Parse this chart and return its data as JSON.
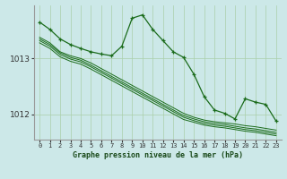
{
  "bg_color": "#cce8e8",
  "grid_color": "#aacfaa",
  "line_color": "#1a6b1a",
  "title": "Graphe pression niveau de la mer (hPa)",
  "xlim": [
    -0.5,
    23.5
  ],
  "ylim": [
    1011.55,
    1013.95
  ],
  "yticks": [
    1012,
    1013
  ],
  "xticks": [
    0,
    1,
    2,
    3,
    4,
    5,
    6,
    7,
    8,
    9,
    10,
    11,
    12,
    13,
    14,
    15,
    16,
    17,
    18,
    19,
    20,
    21,
    22,
    23
  ],
  "series": [
    [
      1013.65,
      1013.52,
      1013.35,
      1013.25,
      1013.18,
      1013.12,
      1013.08,
      1013.05,
      1013.22,
      1013.72,
      1013.78,
      1013.52,
      1013.32,
      1013.12,
      1013.02,
      1012.72,
      1012.32,
      1012.08,
      1012.02,
      1011.92,
      1012.28,
      1012.22,
      1012.18,
      1011.88
    ],
    [
      1013.38,
      1013.28,
      1013.12,
      1013.05,
      1013.0,
      1012.92,
      1012.82,
      1012.72,
      1012.62,
      1012.52,
      1012.42,
      1012.32,
      1012.22,
      1012.12,
      1012.02,
      1011.95,
      1011.9,
      1011.87,
      1011.85,
      1011.83,
      1011.8,
      1011.78,
      1011.75,
      1011.72
    ],
    [
      1013.35,
      1013.25,
      1013.1,
      1013.02,
      1012.97,
      1012.88,
      1012.78,
      1012.68,
      1012.58,
      1012.48,
      1012.38,
      1012.28,
      1012.18,
      1012.08,
      1011.98,
      1011.92,
      1011.87,
      1011.84,
      1011.82,
      1011.79,
      1011.76,
      1011.74,
      1011.71,
      1011.68
    ],
    [
      1013.32,
      1013.22,
      1013.07,
      1012.99,
      1012.94,
      1012.85,
      1012.75,
      1012.65,
      1012.55,
      1012.45,
      1012.35,
      1012.25,
      1012.15,
      1012.05,
      1011.95,
      1011.89,
      1011.84,
      1011.81,
      1011.79,
      1011.76,
      1011.73,
      1011.71,
      1011.68,
      1011.65
    ],
    [
      1013.28,
      1013.18,
      1013.03,
      1012.95,
      1012.9,
      1012.81,
      1012.71,
      1012.61,
      1012.51,
      1012.41,
      1012.31,
      1012.21,
      1012.11,
      1012.01,
      1011.91,
      1011.86,
      1011.81,
      1011.78,
      1011.76,
      1011.73,
      1011.7,
      1011.68,
      1011.65,
      1011.62
    ]
  ],
  "main_series_idx": 0,
  "xlabel_fontsize": 6.0,
  "ytick_fontsize": 6.5,
  "xtick_fontsize": 5.0
}
